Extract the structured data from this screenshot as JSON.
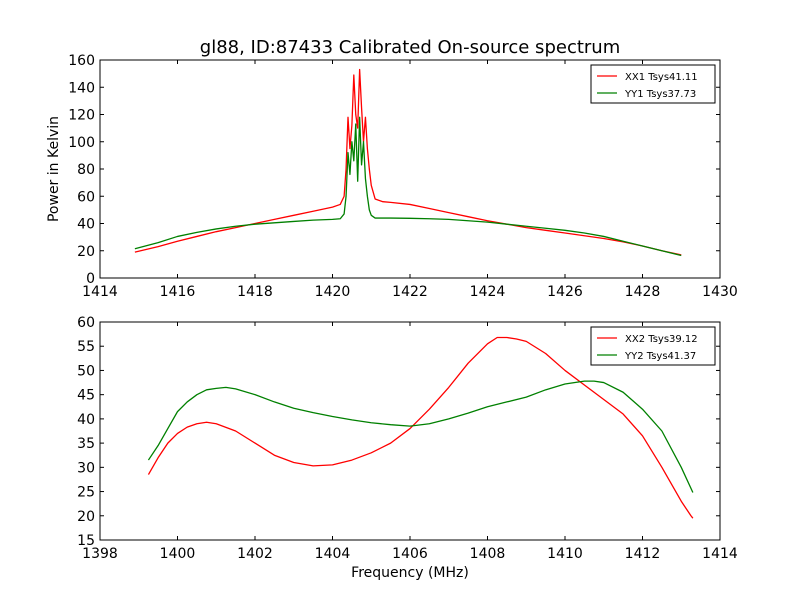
{
  "figure_title": "gl88, ID:87433 Calibrated On-source spectrum",
  "chart_data": [
    {
      "type": "line",
      "title": "gl88, ID:87433 Calibrated On-source spectrum",
      "xlabel": "",
      "ylabel": "Power in Kelvin",
      "xlim": [
        1414,
        1430
      ],
      "ylim": [
        0,
        160
      ],
      "xticks": [
        1414,
        1416,
        1418,
        1420,
        1422,
        1424,
        1426,
        1428,
        1430
      ],
      "yticks": [
        0,
        20,
        40,
        60,
        80,
        100,
        120,
        140,
        160
      ],
      "legend_position": "top-right",
      "grid": false,
      "series": [
        {
          "name": "XX1 Tsys41.11",
          "color": "#ff0000",
          "points": [
            [
              1414.9,
              19
            ],
            [
              1415.5,
              23
            ],
            [
              1416,
              27
            ],
            [
              1416.5,
              30.5
            ],
            [
              1417,
              34
            ],
            [
              1417.5,
              37
            ],
            [
              1418,
              40
            ],
            [
              1418.5,
              43
            ],
            [
              1419,
              46
            ],
            [
              1419.5,
              49
            ],
            [
              1420,
              52
            ],
            [
              1420.2,
              54
            ],
            [
              1420.3,
              60
            ],
            [
              1420.35,
              80
            ],
            [
              1420.4,
              118
            ],
            [
              1420.45,
              95
            ],
            [
              1420.5,
              112
            ],
            [
              1420.55,
              149
            ],
            [
              1420.6,
              120
            ],
            [
              1420.65,
              110
            ],
            [
              1420.7,
              153
            ],
            [
              1420.75,
              125
            ],
            [
              1420.8,
              100
            ],
            [
              1420.85,
              118
            ],
            [
              1420.9,
              95
            ],
            [
              1420.95,
              80
            ],
            [
              1421,
              68
            ],
            [
              1421.1,
              58
            ],
            [
              1421.3,
              56
            ],
            [
              1421.5,
              55.5
            ],
            [
              1422,
              54
            ],
            [
              1422.5,
              51
            ],
            [
              1423,
              48
            ],
            [
              1423.5,
              45
            ],
            [
              1424,
              42
            ],
            [
              1424.5,
              39.5
            ],
            [
              1425,
              37
            ],
            [
              1425.5,
              35
            ],
            [
              1426,
              33
            ],
            [
              1426.5,
              31
            ],
            [
              1427,
              29
            ],
            [
              1427.5,
              26.5
            ],
            [
              1428,
              23.5
            ],
            [
              1428.5,
              20
            ],
            [
              1429,
              17
            ]
          ]
        },
        {
          "name": "YY1 Tsys37.73",
          "color": "#008000",
          "points": [
            [
              1414.9,
              21.5
            ],
            [
              1415.5,
              26
            ],
            [
              1416,
              30.5
            ],
            [
              1416.5,
              33.5
            ],
            [
              1417,
              36
            ],
            [
              1417.5,
              38
            ],
            [
              1418,
              39.5
            ],
            [
              1418.5,
              40.5
            ],
            [
              1419,
              41.5
            ],
            [
              1419.5,
              42.5
            ],
            [
              1420,
              43
            ],
            [
              1420.2,
              43.5
            ],
            [
              1420.3,
              47
            ],
            [
              1420.35,
              60
            ],
            [
              1420.4,
              92
            ],
            [
              1420.45,
              76
            ],
            [
              1420.5,
              100
            ],
            [
              1420.55,
              86
            ],
            [
              1420.6,
              113
            ],
            [
              1420.65,
              71
            ],
            [
              1420.7,
              118
            ],
            [
              1420.75,
              83
            ],
            [
              1420.8,
              100
            ],
            [
              1420.85,
              73
            ],
            [
              1420.9,
              60
            ],
            [
              1420.95,
              50
            ],
            [
              1421,
              46
            ],
            [
              1421.1,
              44
            ],
            [
              1421.5,
              44
            ],
            [
              1422,
              43.8
            ],
            [
              1422.5,
              43.5
            ],
            [
              1423,
              43
            ],
            [
              1423.5,
              42
            ],
            [
              1424,
              41
            ],
            [
              1424.5,
              39.5
            ],
            [
              1425,
              38
            ],
            [
              1425.5,
              36.5
            ],
            [
              1426,
              35
            ],
            [
              1426.5,
              33
            ],
            [
              1427,
              30.5
            ],
            [
              1427.5,
              27
            ],
            [
              1428,
              23.5
            ],
            [
              1428.5,
              20
            ],
            [
              1429,
              16.5
            ]
          ]
        }
      ]
    },
    {
      "type": "line",
      "title": "",
      "xlabel": "Frequency (MHz)",
      "ylabel": "",
      "xlim": [
        1398,
        1414
      ],
      "ylim": [
        15,
        60
      ],
      "xticks": [
        1398,
        1400,
        1402,
        1404,
        1406,
        1408,
        1410,
        1412,
        1414
      ],
      "yticks": [
        15,
        20,
        25,
        30,
        35,
        40,
        45,
        50,
        55,
        60
      ],
      "legend_position": "top-right",
      "grid": false,
      "series": [
        {
          "name": "XX2 Tsys39.12",
          "color": "#ff0000",
          "points": [
            [
              1399.25,
              28.5
            ],
            [
              1399.5,
              32
            ],
            [
              1399.75,
              35
            ],
            [
              1400,
              37
            ],
            [
              1400.25,
              38.3
            ],
            [
              1400.5,
              39
            ],
            [
              1400.75,
              39.3
            ],
            [
              1401,
              39
            ],
            [
              1401.5,
              37.5
            ],
            [
              1402,
              35
            ],
            [
              1402.5,
              32.5
            ],
            [
              1403,
              31
            ],
            [
              1403.5,
              30.3
            ],
            [
              1404,
              30.5
            ],
            [
              1404.5,
              31.5
            ],
            [
              1405,
              33
            ],
            [
              1405.5,
              35
            ],
            [
              1406,
              38
            ],
            [
              1406.5,
              42
            ],
            [
              1407,
              46.5
            ],
            [
              1407.5,
              51.5
            ],
            [
              1408,
              55.5
            ],
            [
              1408.25,
              56.8
            ],
            [
              1408.5,
              56.8
            ],
            [
              1408.75,
              56.5
            ],
            [
              1409,
              56
            ],
            [
              1409.5,
              53.5
            ],
            [
              1410,
              50
            ],
            [
              1410.5,
              47
            ],
            [
              1411,
              44
            ],
            [
              1411.5,
              41
            ],
            [
              1412,
              36.5
            ],
            [
              1412.5,
              30
            ],
            [
              1413,
              23
            ],
            [
              1413.25,
              20
            ],
            [
              1413.3,
              19.5
            ]
          ]
        },
        {
          "name": "YY2 Tsys41.37",
          "color": "#008000",
          "points": [
            [
              1399.25,
              31.5
            ],
            [
              1399.5,
              34.5
            ],
            [
              1399.75,
              38
            ],
            [
              1400,
              41.5
            ],
            [
              1400.25,
              43.5
            ],
            [
              1400.5,
              45
            ],
            [
              1400.75,
              46
            ],
            [
              1401,
              46.3
            ],
            [
              1401.25,
              46.5
            ],
            [
              1401.5,
              46.2
            ],
            [
              1402,
              45
            ],
            [
              1402.5,
              43.5
            ],
            [
              1403,
              42.2
            ],
            [
              1403.5,
              41.3
            ],
            [
              1404,
              40.5
            ],
            [
              1404.5,
              39.8
            ],
            [
              1405,
              39.2
            ],
            [
              1405.5,
              38.8
            ],
            [
              1406,
              38.5
            ],
            [
              1406.5,
              39
            ],
            [
              1407,
              40
            ],
            [
              1407.5,
              41.2
            ],
            [
              1408,
              42.5
            ],
            [
              1408.5,
              43.5
            ],
            [
              1409,
              44.5
            ],
            [
              1409.5,
              46
            ],
            [
              1410,
              47.2
            ],
            [
              1410.5,
              47.8
            ],
            [
              1410.75,
              47.8
            ],
            [
              1411,
              47.5
            ],
            [
              1411.5,
              45.5
            ],
            [
              1412,
              42
            ],
            [
              1412.5,
              37.5
            ],
            [
              1413,
              30
            ],
            [
              1413.3,
              24.8
            ]
          ]
        }
      ]
    }
  ]
}
